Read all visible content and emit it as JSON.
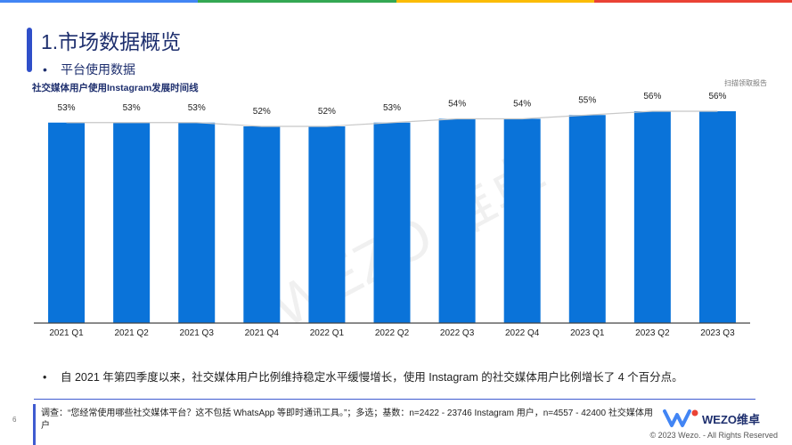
{
  "header": {
    "title": "1.市场数据概览",
    "bullet": "•",
    "subtitle": "平台使用数据",
    "stripe_colors": [
      "#4285f4",
      "#34a853",
      "#fbbc05",
      "#ea4335"
    ]
  },
  "chart_title": "社交媒体用户使用Instagram发展时间线",
  "scan_note": "扫描领取报告",
  "chart_data": {
    "type": "bar",
    "categories": [
      "2021 Q1",
      "2021 Q2",
      "2021 Q3",
      "2021 Q4",
      "2022 Q1",
      "2022 Q2",
      "2022 Q3",
      "2022 Q4",
      "2023 Q1",
      "2023 Q2",
      "2023 Q3"
    ],
    "values": [
      53,
      53,
      53,
      52,
      52,
      53,
      54,
      54,
      55,
      56,
      56
    ],
    "labels": [
      "53%",
      "53%",
      "53%",
      "52%",
      "52%",
      "53%",
      "54%",
      "54%",
      "55%",
      "56%",
      "56%"
    ],
    "bar_color": "#0a73d9",
    "trend_line": true,
    "trend_color": "#c8c8c8",
    "ylim": [
      0,
      60
    ],
    "grid": false,
    "legend": false
  },
  "watermark": "WEZO 维卓",
  "insight": "自 2021 年第四季度以来，社交媒体用户比例维持稳定水平缓慢增长，使用 Instagram 的社交媒体用户比例增长了 4 个百分点。",
  "page_number": "6",
  "footnote": "调查：“您经常使用哪些社交媒体平台？这不包括 WhatsApp 等即时通讯工具。”；多选；基数：n=2422 - 23746 Instagram 用户，n=4557 - 42400 社交媒体用户",
  "logo": {
    "text": "WEZO维卓",
    "colors": [
      "#ea4335",
      "#fbbc05",
      "#34a853",
      "#4285f4"
    ]
  },
  "copyright": "© 2023 Wezo. - All Rights Reserved"
}
